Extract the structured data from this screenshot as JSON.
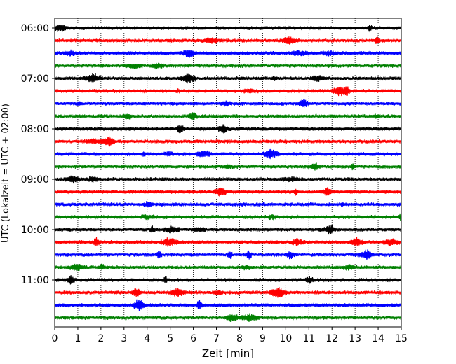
{
  "chart_data": {
    "type": "line",
    "title": "",
    "xlabel": "Zeit  [min]",
    "ylabel": "UTC (Lokalzeit = UTC + 02:00)",
    "xlim": [
      0,
      15
    ],
    "x_ticks": [
      "0",
      "1",
      "2",
      "3",
      "4",
      "5",
      "6",
      "7",
      "8",
      "9",
      "10",
      "11",
      "12",
      "13",
      "14",
      "15"
    ],
    "y_ticks": [
      "06:00",
      "07:00",
      "08:00",
      "09:00",
      "10:00",
      "11:00"
    ],
    "y_tick_traces": [
      0,
      4,
      8,
      12,
      16,
      20
    ],
    "trace_count": 24,
    "trace_start": "06:00",
    "trace_interval_minutes": 15,
    "color_cycle": [
      "#000000",
      "#ff0000",
      "#0000ff",
      "#008000"
    ],
    "grid": {
      "x_vertical_dotted": true,
      "y": false
    }
  }
}
